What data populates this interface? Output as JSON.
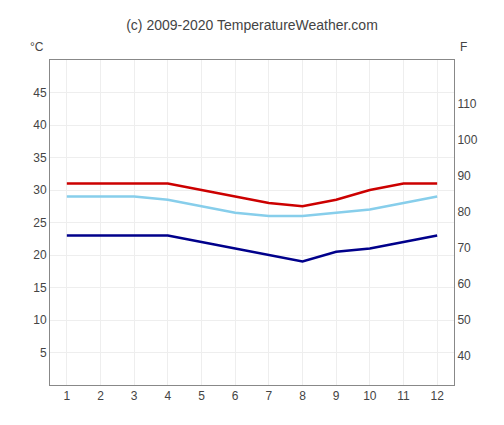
{
  "chart_data": {
    "type": "line",
    "title": "(c) 2009-2020 TemperatureWeather.com",
    "ylabel": "°C",
    "y2label": "F",
    "x": [
      1,
      2,
      3,
      4,
      5,
      6,
      7,
      8,
      9,
      10,
      11,
      12
    ],
    "series": [
      {
        "color": "#cc0000",
        "values": [
          31,
          31,
          31,
          31,
          30,
          29,
          28,
          27.5,
          28.5,
          30,
          31,
          31
        ]
      },
      {
        "color": "#87ceeb",
        "values": [
          29,
          29,
          29,
          28.5,
          27.5,
          26.5,
          26,
          26,
          26.5,
          27,
          28,
          29
        ]
      },
      {
        "color": "#00008b",
        "values": [
          23,
          23,
          23,
          23,
          22,
          21,
          20,
          19,
          20.5,
          21,
          22,
          23
        ]
      }
    ],
    "xlim": [
      0.5,
      12.5
    ],
    "xticks": [
      1,
      2,
      3,
      4,
      5,
      6,
      7,
      8,
      9,
      10,
      11,
      12
    ],
    "ylim": [
      0,
      50
    ],
    "yticks": [
      5,
      10,
      15,
      20,
      25,
      30,
      35,
      40,
      45
    ],
    "y2lim": [
      32,
      122
    ],
    "y2ticks": [
      40,
      50,
      60,
      70,
      80,
      90,
      100,
      110
    ],
    "grid": true
  }
}
